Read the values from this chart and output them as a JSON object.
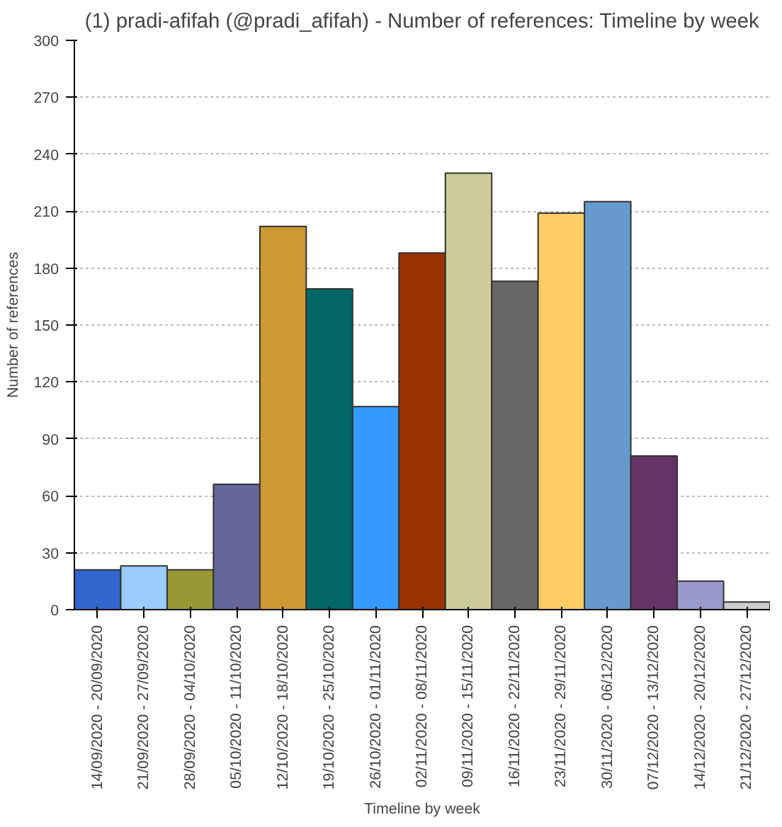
{
  "chart_data": {
    "type": "bar",
    "title": "(1) pradi-afifah (@pradi_afifah) - Number of references: Timeline by week",
    "xlabel": "Timeline by week",
    "ylabel": "Number of references",
    "categories": [
      "14/09/2020 - 20/09/2020",
      "21/09/2020 - 27/09/2020",
      "28/09/2020 - 04/10/2020",
      "05/10/2020 - 11/10/2020",
      "12/10/2020 - 18/10/2020",
      "19/10/2020 - 25/10/2020",
      "26/10/2020 - 01/11/2020",
      "02/11/2020 - 08/11/2020",
      "09/11/2020 - 15/11/2020",
      "16/11/2020 - 22/11/2020",
      "23/11/2020 - 29/11/2020",
      "30/11/2020 - 06/12/2020",
      "07/12/2020 - 13/12/2020",
      "14/12/2020 - 20/12/2020",
      "21/12/2020 - 27/12/2020"
    ],
    "values": [
      21,
      23,
      21,
      66,
      202,
      169,
      107,
      188,
      230,
      173,
      209,
      215,
      81,
      15,
      4
    ],
    "colors": [
      "#3366cc",
      "#99ccff",
      "#999933",
      "#666699",
      "#cc9933",
      "#006666",
      "#3399ff",
      "#993300",
      "#cccc99",
      "#666666",
      "#ffcc66",
      "#6699cc",
      "#663366",
      "#9999cc",
      "#cccccc"
    ],
    "ylim": [
      0,
      300
    ],
    "yticks": [
      0,
      30,
      60,
      90,
      120,
      150,
      180,
      210,
      240,
      270,
      300
    ],
    "grid": "y"
  }
}
